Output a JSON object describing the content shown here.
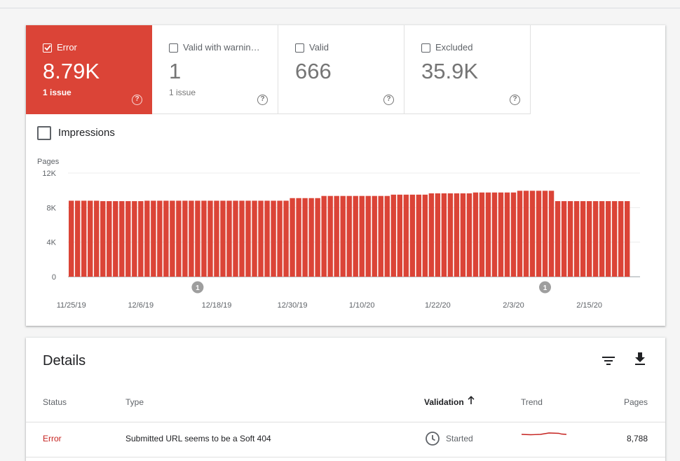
{
  "tiles": [
    {
      "label": "Error",
      "value": "8.79K",
      "sub": "1 issue",
      "checked": true,
      "help": "?"
    },
    {
      "label": "Valid with warnin…",
      "value": "1",
      "sub": "1 issue",
      "checked": false,
      "help": "?"
    },
    {
      "label": "Valid",
      "value": "666",
      "sub": "",
      "checked": false,
      "help": "?"
    },
    {
      "label": "Excluded",
      "value": "35.9K",
      "sub": "",
      "checked": false,
      "help": "?"
    }
  ],
  "impressions_label": "Impressions",
  "colors": {
    "error": "#db4437",
    "error_text": "#c5221f",
    "muted": "#5f6368"
  },
  "chart_data": {
    "type": "bar",
    "ylabel": "Pages",
    "ylim": [
      0,
      12000
    ],
    "yticks": [
      "12K",
      "8K",
      "4K",
      "0"
    ],
    "ytick_values": [
      12000,
      8000,
      4000,
      0
    ],
    "xtick_labels": [
      "11/25/19",
      "12/6/19",
      "12/18/19",
      "12/30/19",
      "1/10/20",
      "1/22/20",
      "2/3/20",
      "2/15/20"
    ],
    "xtick_bar_index": [
      0,
      11,
      23,
      35,
      46,
      58,
      70,
      82
    ],
    "annotations": [
      {
        "bar_index": 20,
        "label": "1"
      },
      {
        "bar_index": 75,
        "label": "1"
      }
    ],
    "values": [
      8800,
      8800,
      8800,
      8800,
      8800,
      8750,
      8750,
      8750,
      8750,
      8750,
      8750,
      8750,
      8800,
      8800,
      8800,
      8800,
      8800,
      8800,
      8800,
      8800,
      8800,
      8800,
      8800,
      8800,
      8800,
      8800,
      8800,
      8800,
      8800,
      8800,
      8800,
      8800,
      8800,
      8800,
      8800,
      9100,
      9100,
      9100,
      9100,
      9100,
      9350,
      9350,
      9350,
      9350,
      9350,
      9350,
      9350,
      9350,
      9350,
      9350,
      9350,
      9500,
      9500,
      9500,
      9500,
      9500,
      9500,
      9650,
      9650,
      9650,
      9650,
      9650,
      9650,
      9650,
      9750,
      9750,
      9750,
      9750,
      9750,
      9750,
      9750,
      9950,
      9950,
      9950,
      9950,
      9950,
      9950,
      8750,
      8750,
      8750,
      8750,
      8750,
      8750,
      8750,
      8750,
      8750,
      8750,
      8750,
      8750
    ]
  },
  "details": {
    "title": "Details",
    "columns": {
      "status": "Status",
      "type": "Type",
      "validation": "Validation",
      "trend": "Trend",
      "pages": "Pages"
    },
    "rows": [
      {
        "status": "Error",
        "type": "Submitted URL seems to be a Soft 404",
        "validation": "Started",
        "pages": "8,788"
      }
    ]
  }
}
